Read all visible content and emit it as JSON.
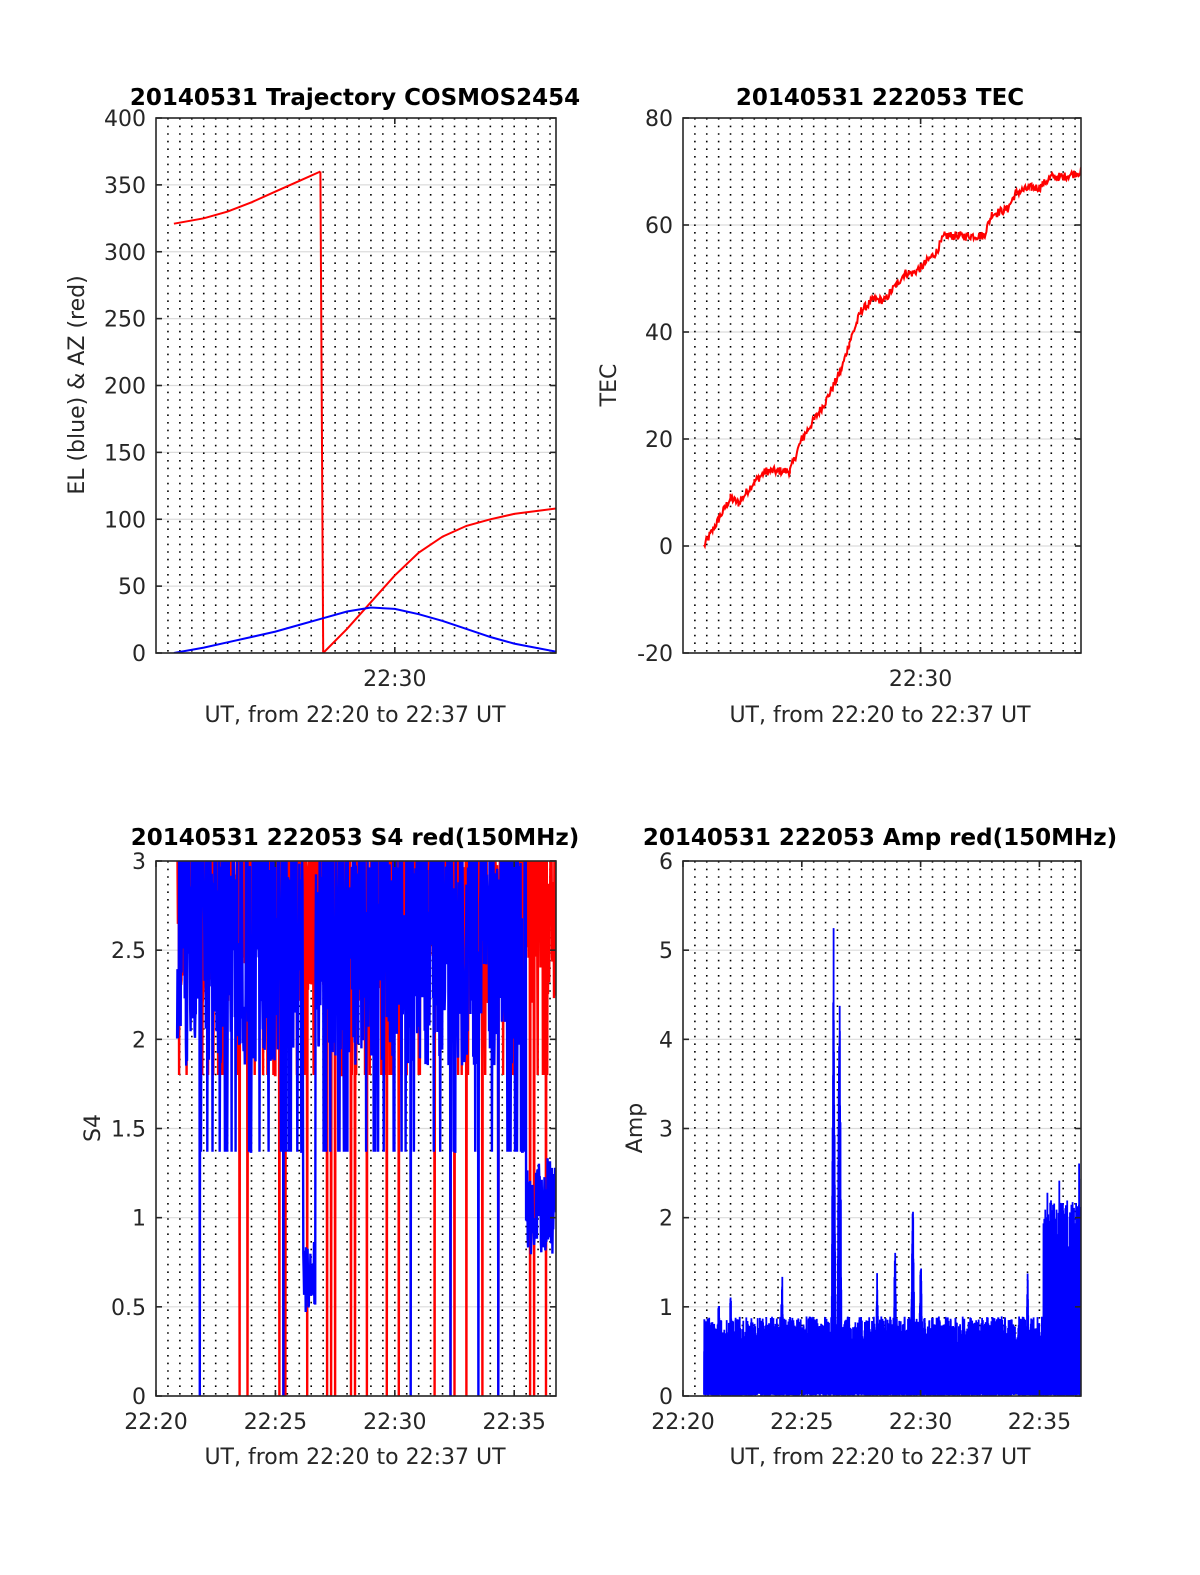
{
  "colors": {
    "red": "#ff0000",
    "blue": "#0000ff",
    "grid": "#000000",
    "axis": "#262626",
    "background": "#ffffff"
  },
  "chart_data": [
    {
      "id": "traj",
      "type": "line",
      "title": "20140531 Trajectory COSMOS2454",
      "xlabel": "UT, from 22:20 to 22:37 UT",
      "ylabel": "EL (blue) & AZ (red)",
      "xlim": [
        "22:20:00",
        "22:36:45"
      ],
      "ylim": [
        0,
        400
      ],
      "yticks": [
        "0",
        "50",
        "100",
        "150",
        "200",
        "250",
        "300",
        "350",
        "400"
      ],
      "xtick_labels": [
        {
          "x": "22:30",
          "label": "22:30"
        }
      ],
      "grid": "dotted vertical every 30 s, light horizontal",
      "series": [
        {
          "color": "red",
          "segments": [
            {
              "x": [
                "22:20:45",
                "22:22:00",
                "22:23:00",
                "22:24:00",
                "22:25:00",
                "22:26:00",
                "22:26:53"
              ],
              "y": [
                321,
                325,
                330,
                337,
                345,
                353,
                360
              ]
            },
            {
              "x": [
                "22:26:53",
                "22:27:00"
              ],
              "y": [
                360,
                0
              ]
            },
            {
              "x": [
                "22:27:00",
                "22:28:00",
                "22:29:00",
                "22:30:00",
                "22:31:00",
                "22:32:00",
                "22:33:00",
                "22:34:00",
                "22:35:00",
                "22:36:45"
              ],
              "y": [
                0,
                18,
                38,
                58,
                75,
                87,
                95,
                100,
                104,
                108
              ]
            }
          ]
        },
        {
          "color": "blue",
          "segments": [
            {
              "x": [
                "22:20:45",
                "22:22:00",
                "22:23:00",
                "22:24:00",
                "22:25:00",
                "22:26:00",
                "22:27:00",
                "22:28:00",
                "22:29:00",
                "22:30:00",
                "22:31:00",
                "22:32:00",
                "22:33:00",
                "22:34:00",
                "22:35:00",
                "22:36:45"
              ],
              "y": [
                0,
                4,
                8,
                12,
                16,
                21,
                26,
                31,
                34,
                33,
                29,
                24,
                18,
                12,
                7,
                1
              ]
            }
          ]
        }
      ]
    },
    {
      "id": "tec",
      "type": "line",
      "title": "20140531 222053 TEC",
      "xlabel": "UT, from 22:20 to 22:37 UT",
      "ylabel": "TEC",
      "xlim": [
        "22:20:00",
        "22:36:45"
      ],
      "ylim": [
        -20,
        80
      ],
      "yticks": [
        "-20",
        "0",
        "20",
        "40",
        "60",
        "80"
      ],
      "xtick_labels": [
        {
          "x": "22:30",
          "label": "22:30"
        }
      ],
      "grid": "dotted vertical every 30 s, light horizontal",
      "series": [
        {
          "color": "red",
          "segments": [
            {
              "x": [
                "22:20:53",
                "22:21:30",
                "22:22:00",
                "22:22:20",
                "22:23:00",
                "22:23:30",
                "22:24:00",
                "22:24:30",
                "22:25:00",
                "22:26:00",
                "22:26:40",
                "22:27:00",
                "22:27:30",
                "22:28:00",
                "22:28:30",
                "22:29:00",
                "22:29:20",
                "22:29:40",
                "22:30:00",
                "22:30:40",
                "22:31:00",
                "22:31:40",
                "22:32:00",
                "22:32:40",
                "22:33:00",
                "22:33:40",
                "22:34:00",
                "22:34:40",
                "22:35:00",
                "22:35:30",
                "22:36:00",
                "22:36:45"
              ],
              "y": [
                0,
                5,
                9,
                8,
                12,
                14,
                14,
                14,
                20,
                27,
                33,
                38,
                44,
                46,
                46,
                49,
                51,
                51,
                52,
                55,
                58,
                58,
                58,
                58,
                62,
                63,
                66,
                67,
                67,
                69,
                69,
                70
              ]
            }
          ]
        }
      ]
    },
    {
      "id": "s4",
      "type": "line",
      "title": "20140531 222053 S4 red(150MHz)",
      "xlabel": "UT, from 22:20 to 22:37 UT",
      "ylabel": "S4",
      "xlim": [
        "22:20:00",
        "22:36:45"
      ],
      "ylim": [
        0,
        3
      ],
      "yticks": [
        "0",
        "0.5",
        "1",
        "1.5",
        "2",
        "2.5",
        "3"
      ],
      "xtick_labels": [
        {
          "x": "22:20",
          "label": "22:20"
        },
        {
          "x": "22:25",
          "label": "22:25"
        },
        {
          "x": "22:30",
          "label": "22:30"
        },
        {
          "x": "22:35",
          "label": "22:35"
        }
      ],
      "grid": "dotted vertical every 30 s, light horizontal",
      "series": [
        {
          "color": "red",
          "x_range": [
            "22:20:53",
            "22:36:45"
          ],
          "base": 2.7,
          "spread": 0.5,
          "drops_to_zero": [
            "22:23:30",
            "22:23:50",
            "22:25:10",
            "22:25:20",
            "22:25:25",
            "22:26:20",
            "22:27:10",
            "22:27:20",
            "22:27:30",
            "22:28:10",
            "22:28:20",
            "22:28:50",
            "22:29:40",
            "22:30:10",
            "22:31:40",
            "22:32:20",
            "22:32:30",
            "22:33:00",
            "22:33:40",
            "22:34:20",
            "22:35:40",
            "22:35:50",
            "22:36:20"
          ],
          "clipped_above": 3
        },
        {
          "color": "blue",
          "x_range": [
            "22:20:53",
            "22:36:45"
          ],
          "base": 2.45,
          "spread": 0.6,
          "drops_to_zero": [
            "22:21:50",
            "22:25:20",
            "22:30:40",
            "22:32:20",
            "22:33:30",
            "22:34:20"
          ],
          "low_segments": [
            {
              "x": [
                "22:26:10",
                "22:26:40"
              ],
              "y": [
                0.55,
                0.6
              ]
            },
            {
              "x": [
                "22:35:30",
                "22:36:45"
              ],
              "y": [
                0.9,
                1.1
              ]
            }
          ],
          "clipped_above": 3
        }
      ]
    },
    {
      "id": "amp",
      "type": "line",
      "title": "20140531 222053 Amp red(150MHz)",
      "xlabel": "UT, from 22:20 to 22:37 UT",
      "ylabel": "Amp",
      "xlim": [
        "22:20:00",
        "22:36:45"
      ],
      "ylim": [
        0,
        6
      ],
      "yticks": [
        "0",
        "1",
        "2",
        "3",
        "4",
        "5",
        "6"
      ],
      "xtick_labels": [
        {
          "x": "22:20",
          "label": "22:20"
        },
        {
          "x": "22:25",
          "label": "22:25"
        },
        {
          "x": "22:30",
          "label": "22:30"
        },
        {
          "x": "22:35",
          "label": "22:35"
        }
      ],
      "grid": "dotted vertical every 30 s, light horizontal",
      "series": [
        {
          "color": "blue",
          "x_range": [
            "22:20:53",
            "22:36:45"
          ],
          "baseline_max": 0.85,
          "peaks": [
            {
              "x": "22:21:30",
              "y": 1.3
            },
            {
              "x": "22:22:00",
              "y": 1.3
            },
            {
              "x": "22:24:10",
              "y": 1.55
            },
            {
              "x": "22:26:20",
              "y": 5.45
            },
            {
              "x": "22:26:35",
              "y": 5.3
            },
            {
              "x": "22:28:10",
              "y": 1.4
            },
            {
              "x": "22:28:55",
              "y": 1.85
            },
            {
              "x": "22:29:40",
              "y": 2.4
            },
            {
              "x": "22:30:00",
              "y": 1.75
            },
            {
              "x": "22:34:30",
              "y": 1.45
            },
            {
              "x": "22:35:20",
              "y": 2.45
            },
            {
              "x": "22:35:50",
              "y": 2.5
            },
            {
              "x": "22:36:40",
              "y": 2.7
            }
          ],
          "elevated_after": {
            "x": "22:35:10",
            "max": 2.2
          }
        }
      ]
    }
  ]
}
